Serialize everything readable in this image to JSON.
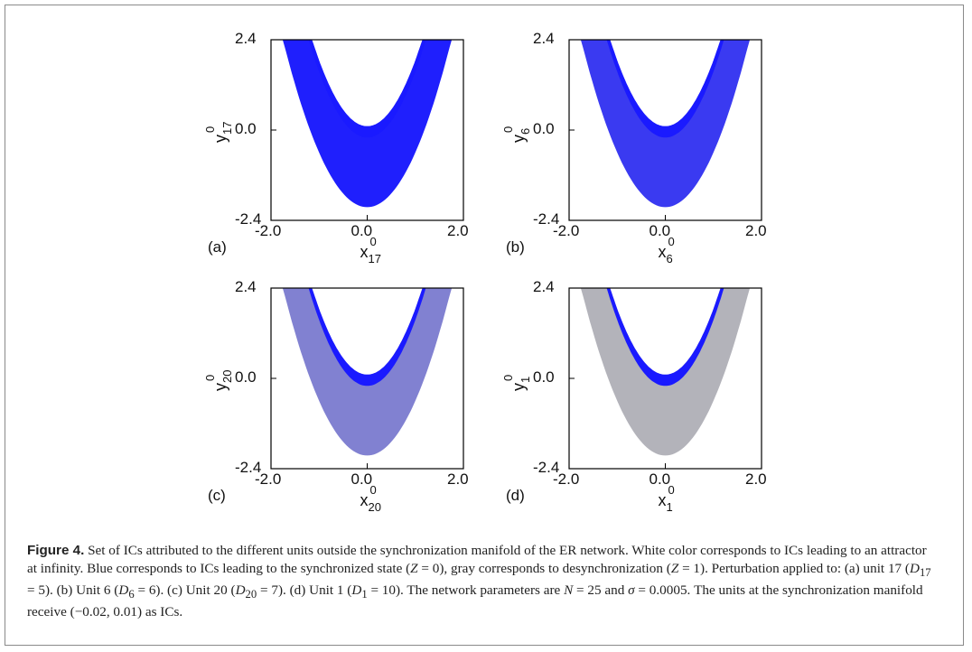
{
  "figure": {
    "panels": [
      {
        "id": "a",
        "label": "(a)",
        "xlabel_base": "x",
        "xlabel_sup": "0",
        "xlabel_sub": "17",
        "ylabel_base": "y",
        "ylabel_sup": "0",
        "ylabel_sub": "17",
        "blue_fraction": 0.97
      },
      {
        "id": "b",
        "label": "(b)",
        "xlabel_base": "x",
        "xlabel_sup": "0",
        "xlabel_sub": "6",
        "ylabel_base": "y",
        "ylabel_sup": "0",
        "ylabel_sub": "6",
        "blue_fraction": 0.8
      },
      {
        "id": "c",
        "label": "(c)",
        "xlabel_base": "x",
        "xlabel_sup": "0",
        "xlabel_sub": "20",
        "ylabel_base": "y",
        "ylabel_sup": "0",
        "ylabel_sub": "20",
        "blue_fraction": 0.35
      },
      {
        "id": "d",
        "label": "(d)",
        "xlabel_base": "x",
        "xlabel_sup": "0",
        "xlabel_sub": "1",
        "ylabel_base": "y",
        "ylabel_sup": "0",
        "ylabel_sub": "1",
        "blue_fraction": 0.03
      }
    ],
    "xticks": [
      "-2.0",
      "0.0",
      "2.0"
    ],
    "yticks": [
      "2.4",
      "0.0",
      "-2.4"
    ],
    "xlim": [
      -2.0,
      2.0
    ],
    "ylim": [
      -2.4,
      2.4
    ],
    "colors": {
      "sync": "#1a1aff",
      "desync": "#b8b8b8",
      "infinity": "#ffffff"
    }
  },
  "caption": {
    "title": "Figure 4.",
    "text1": " Set of ICs attributed to the different units outside the synchronization manifold of the ER network. White color corresponds to ICs leading to an attractor at infinity. Blue corresponds to ICs leading to the synchronized state (",
    "z0": "Z",
    "text2": " = 0), gray corresponds to desynchronization (",
    "z1": "Z",
    "text3": " = 1). Perturbation applied to: (a) unit 17 (",
    "d17": "D",
    "d17sub": "17",
    "text4": " = 5). (b) Unit 6 (",
    "d6": "D",
    "d6sub": "6",
    "text5": " = 6). (c) Unit 20 (",
    "d20": "D",
    "d20sub": "20",
    "text6": " = 7). (d) Unit 1 (",
    "d1": "D",
    "d1sub": "1",
    "text7": " = 10). The network parameters are ",
    "n": "N",
    "text8": " = 25 and ",
    "sigma": "σ",
    "text9": " = 0.0005. The units at the synchronization manifold receive (−0.02, 0.01) as ICs."
  }
}
